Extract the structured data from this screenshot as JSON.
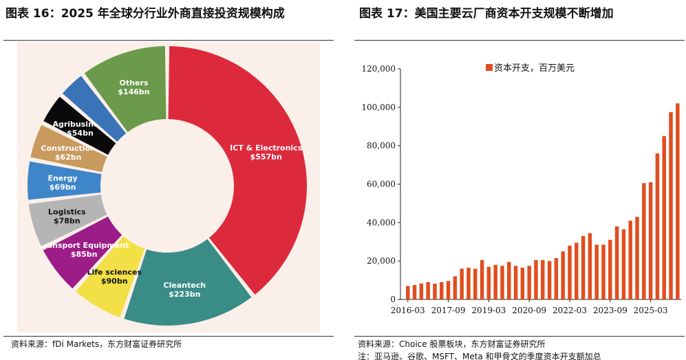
{
  "left": {
    "title": "图表 16：2025 年全球分行业外商直接投资规模构成",
    "source": "资料来源：fDi Markets，东方财富证券研究所"
  },
  "right": {
    "title": "图表 17：美国主要云厂商资本开支规模不断增加",
    "source": "资料来源：Choice 股票板块，东方财富证券研究所",
    "note": "注：亚马逊、谷歌、MSFT、Meta 和甲骨文的季度资本开支额加总"
  },
  "colors": {
    "ict": "#dc2a3c",
    "cleantech": "#3a8c87",
    "life_sciences": "#f2e046",
    "transport": "#9c1d87",
    "logistics": "#b5b5b5",
    "energy": "#3e86c9",
    "construction": "#c99a5e",
    "agribusiness": "#0a0a0a",
    "blue_small": "#3b73b9",
    "others": "#6a9a4a",
    "bar": "#e04e1f",
    "donut_bg": "#fbefe9"
  },
  "chart_data": [
    {
      "type": "pie",
      "subtype": "donut",
      "slices": [
        {
          "name": "ICT & Electronics",
          "label": "$557bn",
          "value": 557,
          "color_key": "ict"
        },
        {
          "name": "Cleantech",
          "label": "$223bn",
          "value": 223,
          "color_key": "cleantech"
        },
        {
          "name": "Life sciences",
          "label": "$90bn",
          "value": 90,
          "color_key": "life_sciences"
        },
        {
          "name": "Transport Equipment",
          "label": "$85bn",
          "value": 85,
          "color_key": "transport"
        },
        {
          "name": "Logistics",
          "label": "$78bn",
          "value": 78,
          "color_key": "logistics"
        },
        {
          "name": "Energy",
          "label": "$69bn",
          "value": 69,
          "color_key": "energy"
        },
        {
          "name": "Construction",
          "label": "$62bn",
          "value": 62,
          "color_key": "construction"
        },
        {
          "name": "Agribusiness",
          "label": "$54bn",
          "value": 54,
          "color_key": "agribusiness"
        },
        {
          "name": "",
          "label": "",
          "value": 48,
          "color_key": "blue_small"
        },
        {
          "name": "Others",
          "label": "$146bn",
          "value": 146,
          "color_key": "others"
        }
      ]
    },
    {
      "type": "bar",
      "legend": "资本开支，百万美元",
      "ylim": [
        0,
        120000
      ],
      "yticks": [
        "0",
        "20,000",
        "40,000",
        "60,000",
        "80,000",
        "100,000",
        "120,000"
      ],
      "xtick_labels": [
        "2016-03",
        "2017-09",
        "2019-03",
        "2020-09",
        "2022-03",
        "2023-09",
        "2025-03"
      ],
      "xtick_every": 6,
      "grid": false,
      "values": [
        7000,
        7500,
        8300,
        9000,
        8200,
        9000,
        9600,
        12000,
        16000,
        16500,
        16000,
        20500,
        17000,
        18000,
        17500,
        19500,
        17500,
        16500,
        17500,
        20500,
        20500,
        20000,
        21500,
        25000,
        28000,
        29500,
        33000,
        34500,
        28500,
        28500,
        31000,
        38000,
        36500,
        41000,
        43000,
        60500,
        61000,
        76000,
        85000,
        97500,
        102000
      ]
    }
  ]
}
